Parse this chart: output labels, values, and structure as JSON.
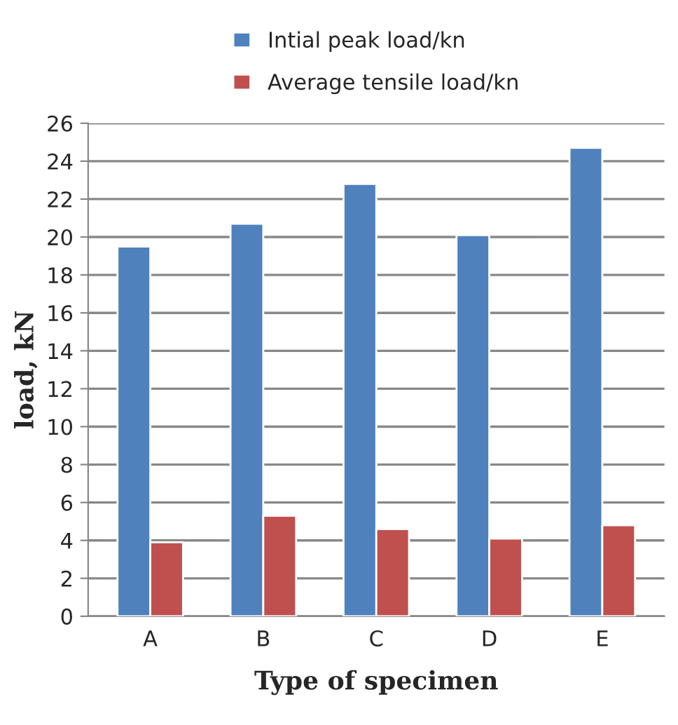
{
  "chart_data": {
    "type": "bar",
    "xlabel": "Type of specimen",
    "ylabel": "load, kN",
    "categories": [
      "A",
      "B",
      "C",
      "D",
      "E"
    ],
    "series": [
      {
        "name": "Intial peak load/kn",
        "color": "#4f81bd",
        "values": [
          19.5,
          20.7,
          22.8,
          20.1,
          24.7
        ]
      },
      {
        "name": "Average tensile load/kn",
        "color": "#c0504d",
        "values": [
          3.9,
          5.3,
          4.6,
          4.1,
          4.8
        ]
      }
    ],
    "ylim": [
      0,
      26
    ],
    "yticks": [
      0,
      2,
      4,
      6,
      8,
      10,
      12,
      14,
      16,
      18,
      20,
      22,
      24,
      26
    ],
    "grid": "y",
    "legend": "top"
  }
}
